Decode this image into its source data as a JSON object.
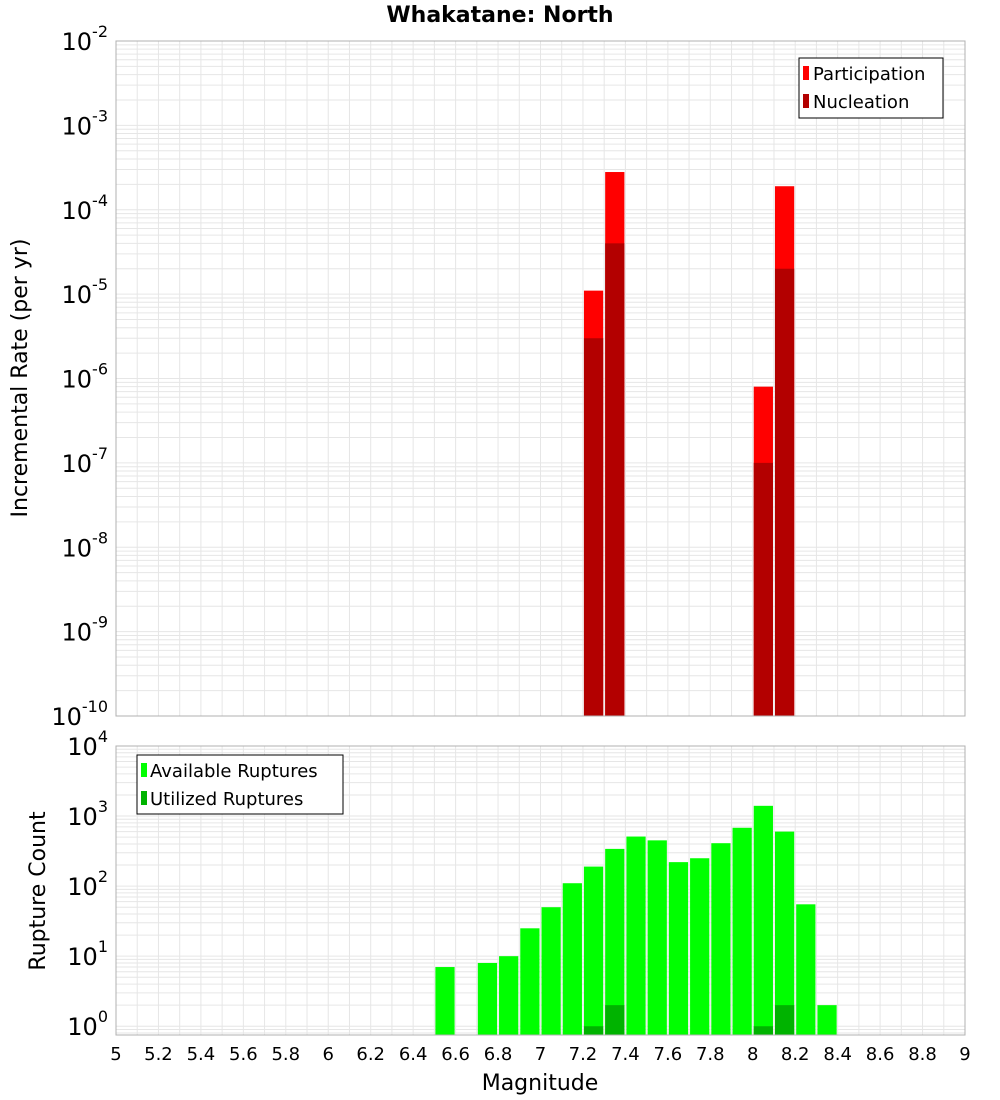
{
  "chart_data": [
    {
      "type": "bar",
      "title": "Whakatane: North",
      "xlabel": "",
      "ylabel": "Incremental Rate (per yr)",
      "yscale": "log",
      "ylim": [
        1e-10,
        0.01
      ],
      "xlim": [
        5,
        9
      ],
      "bin_width": 0.1,
      "legend": {
        "placement": "top-right"
      },
      "series": [
        {
          "name": "Participation",
          "color": "#ff0000",
          "points": [
            {
              "x": 7.25,
              "y": 1.1e-05
            },
            {
              "x": 7.35,
              "y": 0.00028
            },
            {
              "x": 8.05,
              "y": 8e-07
            },
            {
              "x": 8.15,
              "y": 0.00019
            }
          ]
        },
        {
          "name": "Nucleation",
          "color": "#b30000",
          "points": [
            {
              "x": 7.25,
              "y": 3e-06
            },
            {
              "x": 7.35,
              "y": 4e-05
            },
            {
              "x": 8.05,
              "y": 1e-07
            },
            {
              "x": 8.15,
              "y": 2e-05
            }
          ]
        }
      ]
    },
    {
      "type": "bar",
      "title": "",
      "xlabel": "Magnitude",
      "ylabel": "Rupture Count",
      "yscale": "log",
      "ylim": [
        0.75,
        10000.0
      ],
      "xlim": [
        5,
        9
      ],
      "bin_width": 0.1,
      "legend": {
        "placement": "top-left"
      },
      "series": [
        {
          "name": "Available Ruptures",
          "color": "#00ff00",
          "points": [
            {
              "x": 6.55,
              "y": 7
            },
            {
              "x": 6.75,
              "y": 8
            },
            {
              "x": 6.85,
              "y": 10
            },
            {
              "x": 6.95,
              "y": 25
            },
            {
              "x": 7.05,
              "y": 50
            },
            {
              "x": 7.15,
              "y": 110
            },
            {
              "x": 7.25,
              "y": 190
            },
            {
              "x": 7.35,
              "y": 340
            },
            {
              "x": 7.45,
              "y": 510
            },
            {
              "x": 7.55,
              "y": 450
            },
            {
              "x": 7.65,
              "y": 220
            },
            {
              "x": 7.75,
              "y": 250
            },
            {
              "x": 7.85,
              "y": 410
            },
            {
              "x": 7.95,
              "y": 680
            },
            {
              "x": 8.05,
              "y": 1400
            },
            {
              "x": 8.15,
              "y": 600
            },
            {
              "x": 8.25,
              "y": 55
            },
            {
              "x": 8.35,
              "y": 2
            }
          ]
        },
        {
          "name": "Utilized Ruptures",
          "color": "#00b300",
          "points": [
            {
              "x": 7.25,
              "y": 1
            },
            {
              "x": 7.35,
              "y": 2
            },
            {
              "x": 8.05,
              "y": 1
            },
            {
              "x": 8.15,
              "y": 2
            }
          ]
        }
      ]
    }
  ],
  "x_ticks": [
    "5",
    "5.2",
    "5.4",
    "5.6",
    "5.8",
    "6",
    "6.2",
    "6.4",
    "6.6",
    "6.8",
    "7",
    "7.2",
    "7.4",
    "7.6",
    "7.8",
    "8",
    "8.2",
    "8.4",
    "8.6",
    "8.8",
    "9"
  ],
  "top_y_ticks": [
    {
      "base": "10",
      "exp": "-10",
      "v": 1e-10
    },
    {
      "base": "10",
      "exp": "-9",
      "v": 1e-09
    },
    {
      "base": "10",
      "exp": "-8",
      "v": 1e-08
    },
    {
      "base": "10",
      "exp": "-7",
      "v": 1e-07
    },
    {
      "base": "10",
      "exp": "-6",
      "v": 1e-06
    },
    {
      "base": "10",
      "exp": "-5",
      "v": 1e-05
    },
    {
      "base": "10",
      "exp": "-4",
      "v": 0.0001
    },
    {
      "base": "10",
      "exp": "-3",
      "v": 0.001
    },
    {
      "base": "10",
      "exp": "-2",
      "v": 0.01
    }
  ],
  "bottom_y_ticks": [
    {
      "base": "10",
      "exp": "0",
      "v": 1
    },
    {
      "base": "10",
      "exp": "1",
      "v": 10
    },
    {
      "base": "10",
      "exp": "2",
      "v": 100
    },
    {
      "base": "10",
      "exp": "3",
      "v": 1000
    },
    {
      "base": "10",
      "exp": "4",
      "v": 10000
    }
  ],
  "colors": {
    "grid": "#e6e6e6",
    "frame": "#b0b0b0",
    "background": "#ffffff"
  }
}
